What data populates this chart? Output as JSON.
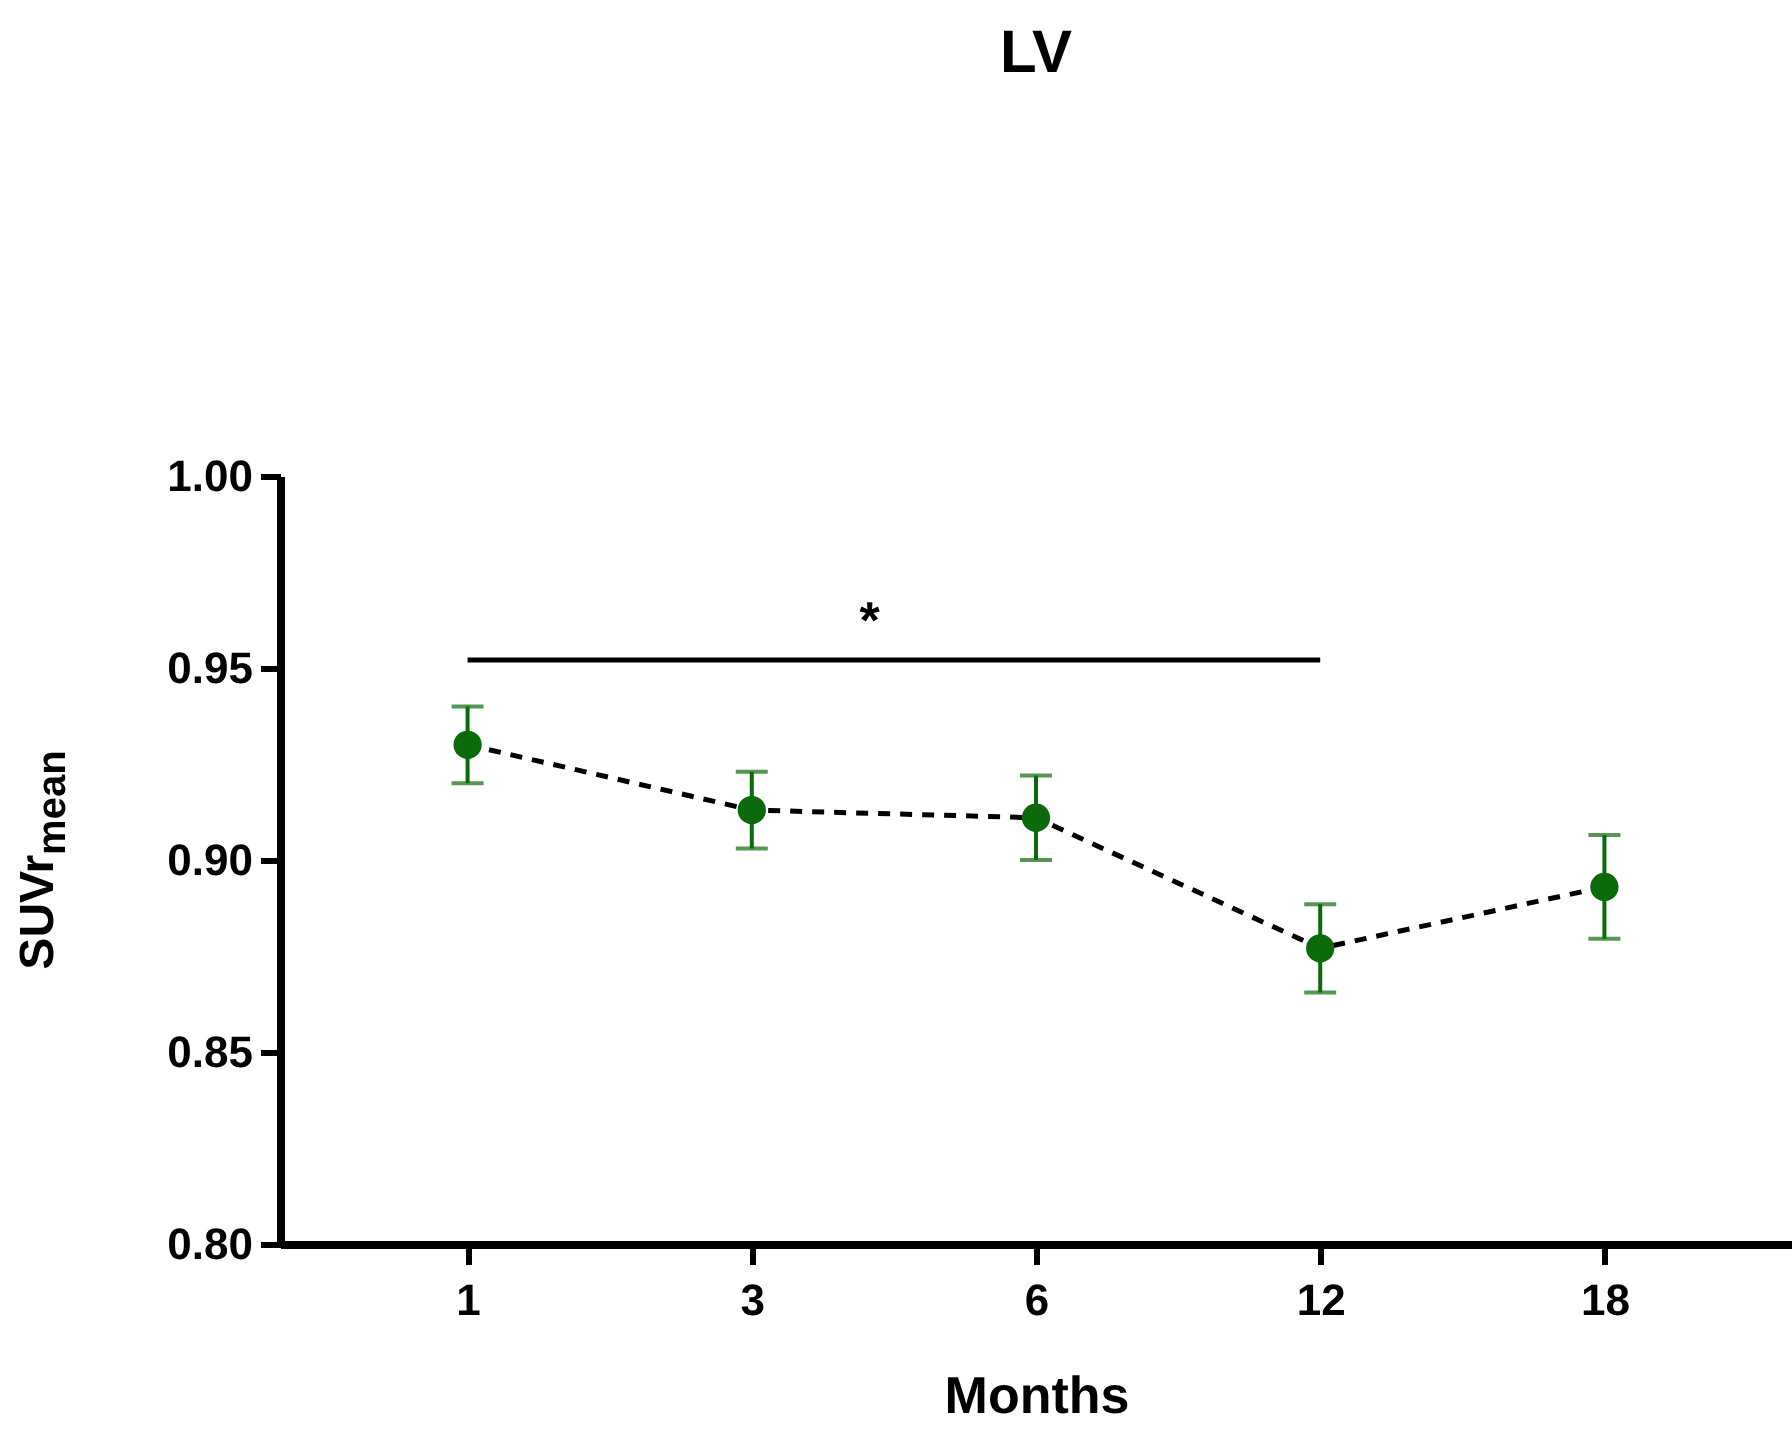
{
  "chart_data": {
    "type": "line",
    "title": "LV",
    "xlabel": "Months",
    "ylabel": "SUVr$_{mean}$",
    "categories": [
      "1",
      "3",
      "6",
      "12",
      "18"
    ],
    "series": [
      {
        "color": "#0b6b0b",
        "values": [
          0.93,
          0.913,
          0.911,
          0.877,
          0.893
        ],
        "errors": [
          0.01,
          0.01,
          0.011,
          0.0115,
          0.0135
        ]
      }
    ],
    "ylim": [
      0.8,
      1.0
    ],
    "yticks": [
      {
        "value": 0.8,
        "label": "0.80"
      },
      0.85,
      {
        "value": 0.9,
        "label": "0.90"
      },
      0.95,
      {
        "value": 1,
        "label": "1.00"
      }
    ],
    "marker": "circle",
    "line_style": "dashed",
    "grid": false,
    "annotations": [
      "*"
    ]
  }
}
